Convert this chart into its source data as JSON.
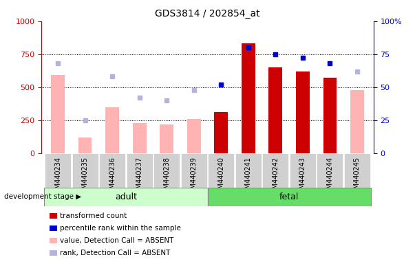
{
  "title": "GDS3814 / 202854_at",
  "categories": [
    "GSM440234",
    "GSM440235",
    "GSM440236",
    "GSM440237",
    "GSM440238",
    "GSM440239",
    "GSM440240",
    "GSM440241",
    "GSM440242",
    "GSM440243",
    "GSM440244",
    "GSM440245"
  ],
  "transformed_count": [
    null,
    null,
    null,
    null,
    null,
    null,
    310,
    830,
    650,
    620,
    570,
    null
  ],
  "percentile_rank": [
    null,
    null,
    null,
    null,
    null,
    null,
    52,
    80,
    75,
    72,
    68,
    null
  ],
  "value_absent": [
    590,
    120,
    350,
    230,
    215,
    260,
    null,
    null,
    null,
    null,
    null,
    480
  ],
  "rank_absent": [
    68,
    25,
    58,
    42,
    40,
    48,
    null,
    null,
    null,
    null,
    null,
    62
  ],
  "ylim_left": [
    0,
    1000
  ],
  "ylim_right": [
    0,
    100
  ],
  "yticks_left": [
    0,
    250,
    500,
    750,
    1000
  ],
  "yticks_right": [
    0,
    25,
    50,
    75,
    100
  ],
  "group_adult_label": "adult",
  "group_fetal_label": "fetal",
  "stage_label": "development stage",
  "legend_labels": [
    "transformed count",
    "percentile rank within the sample",
    "value, Detection Call = ABSENT",
    "rank, Detection Call = ABSENT"
  ],
  "bar_width": 0.5,
  "color_transformed": "#cc0000",
  "color_percentile": "#0000cc",
  "color_value_absent": "#ffb3b3",
  "color_rank_absent": "#b3b3dd",
  "color_adult_bg": "#ccffcc",
  "color_fetal_bg": "#66dd66",
  "left_axis_color": "#cc0000",
  "right_axis_color": "#0000cc",
  "tick_label_bg": "#d0d0d0",
  "marker_size": 5
}
